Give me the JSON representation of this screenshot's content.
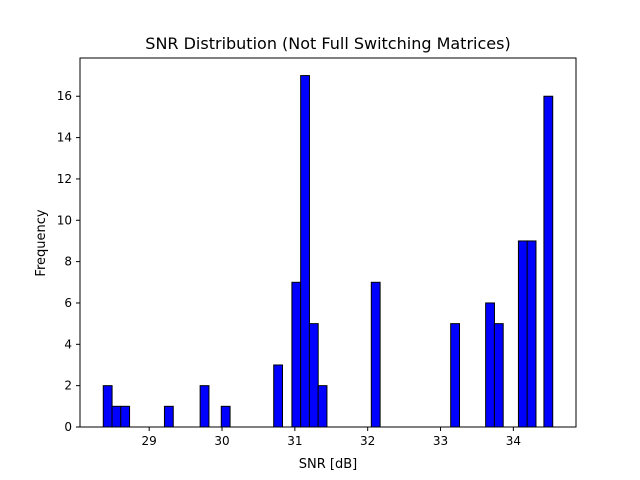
{
  "chart_data": {
    "type": "bar",
    "title": "SNR Distribution (Not Full Switching Matrices)",
    "xlabel": "SNR [dB]",
    "ylabel": "Frequency",
    "xlim": [
      28.05,
      34.86
    ],
    "ylim": [
      0,
      17.85
    ],
    "xticks": [
      29,
      30,
      31,
      32,
      33,
      34
    ],
    "yticks": [
      0,
      2,
      4,
      6,
      8,
      10,
      12,
      14,
      16
    ],
    "grid": false,
    "bar_color": "#0000ff",
    "edge_color": "#000000",
    "bin_width": 0.121,
    "bins": [
      {
        "x": 28.43,
        "count": 2
      },
      {
        "x": 28.55,
        "count": 1
      },
      {
        "x": 28.67,
        "count": 1
      },
      {
        "x": 29.27,
        "count": 1
      },
      {
        "x": 29.76,
        "count": 2
      },
      {
        "x": 30.05,
        "count": 1
      },
      {
        "x": 30.77,
        "count": 3
      },
      {
        "x": 31.02,
        "count": 7
      },
      {
        "x": 31.14,
        "count": 17
      },
      {
        "x": 31.26,
        "count": 5
      },
      {
        "x": 31.38,
        "count": 2
      },
      {
        "x": 32.11,
        "count": 7
      },
      {
        "x": 33.2,
        "count": 5
      },
      {
        "x": 33.68,
        "count": 6
      },
      {
        "x": 33.8,
        "count": 5
      },
      {
        "x": 34.13,
        "count": 9
      },
      {
        "x": 34.25,
        "count": 9
      },
      {
        "x": 34.48,
        "count": 16
      }
    ]
  }
}
